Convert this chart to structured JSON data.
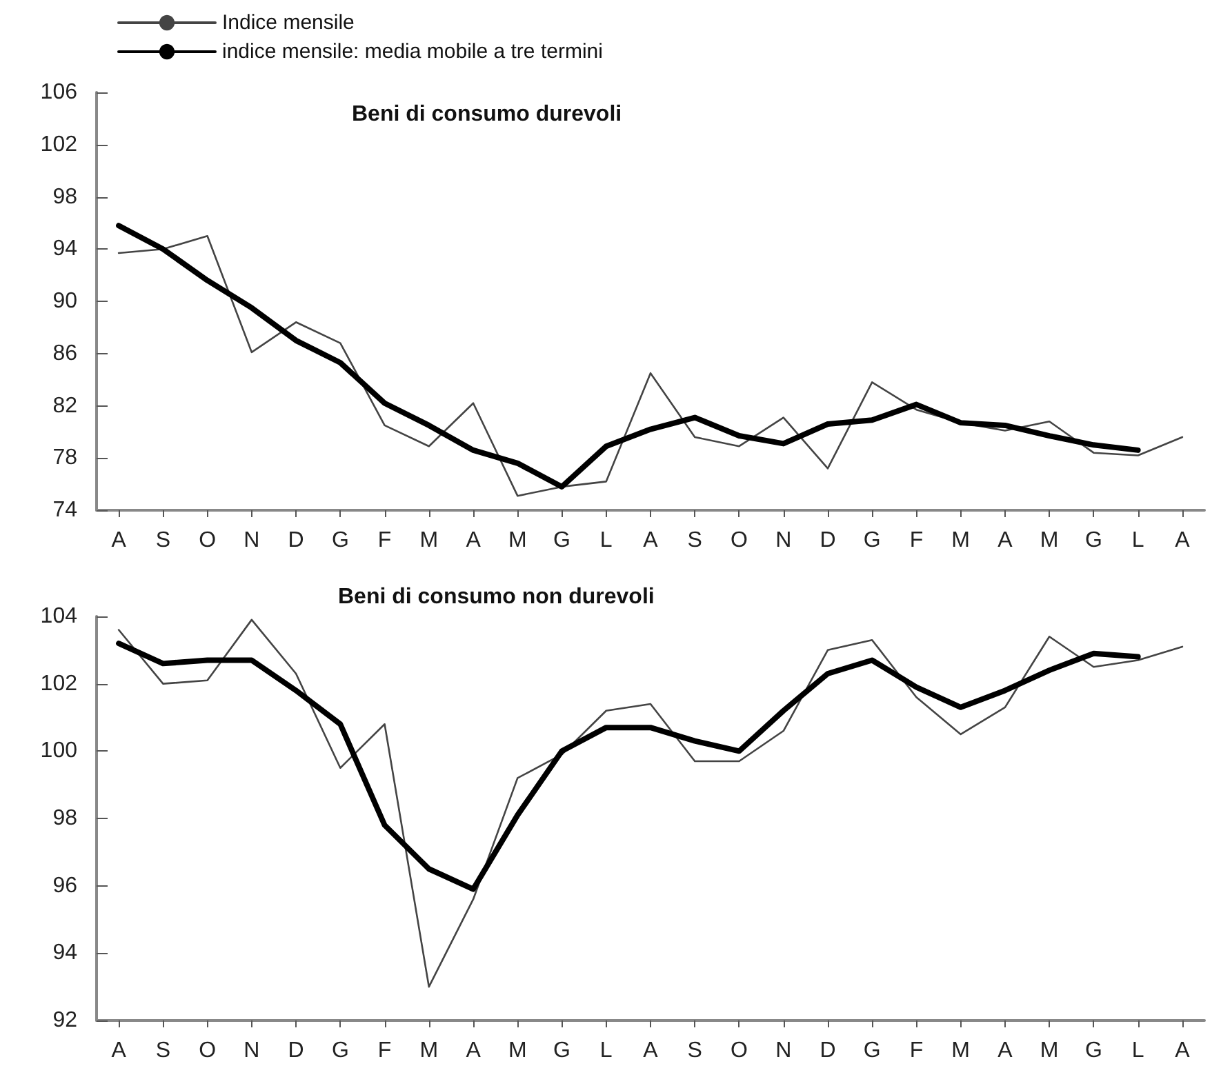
{
  "chart_data": [
    {
      "type": "line",
      "title": "Beni di consumo durevoli",
      "categories": [
        "A",
        "S",
        "O",
        "N",
        "D",
        "G",
        "F",
        "M",
        "A",
        "M",
        "G",
        "L",
        "A",
        "S",
        "O",
        "N",
        "D",
        "G",
        "F",
        "M",
        "A",
        "M",
        "G",
        "L",
        "A"
      ],
      "series": [
        {
          "name": "Indice mensile",
          "color": "#444444",
          "values": [
            93.7,
            94.0,
            95.0,
            86.1,
            88.4,
            86.8,
            80.5,
            78.9,
            82.2,
            75.1,
            75.8,
            76.2,
            84.5,
            79.6,
            78.9,
            81.1,
            77.2,
            83.8,
            81.7,
            80.7,
            80.1,
            80.8,
            78.4,
            78.2,
            79.6
          ]
        },
        {
          "name": "indice mensile: media mobile a tre termini",
          "color": "#000000",
          "values": [
            95.8,
            94.0,
            91.6,
            89.5,
            87.0,
            85.3,
            82.2,
            80.5,
            78.6,
            77.6,
            75.8,
            78.9,
            80.2,
            81.1,
            79.7,
            79.1,
            80.6,
            80.9,
            82.1,
            80.7,
            80.5,
            79.7,
            79.0,
            78.6,
            null
          ]
        }
      ],
      "ylim": [
        74,
        106
      ],
      "yticks": [
        74,
        78,
        82,
        86,
        90,
        94,
        98,
        102,
        106
      ],
      "grid": false,
      "legend": "top left",
      "marker": "none",
      "line_style": "solid"
    },
    {
      "type": "line",
      "title": "Beni di consumo non durevoli",
      "categories": [
        "A",
        "S",
        "O",
        "N",
        "D",
        "G",
        "F",
        "M",
        "A",
        "M",
        "G",
        "L",
        "A",
        "S",
        "O",
        "N",
        "D",
        "G",
        "F",
        "M",
        "A",
        "M",
        "G",
        "L",
        "A"
      ],
      "series": [
        {
          "color": "#444444",
          "values": [
            103.6,
            102.0,
            102.1,
            103.9,
            102.3,
            99.5,
            100.8,
            93.0,
            95.6,
            99.2,
            99.9,
            101.2,
            101.4,
            99.7,
            99.7,
            100.6,
            103.0,
            103.3,
            101.6,
            100.5,
            101.3,
            103.4,
            102.5,
            102.7,
            103.1
          ]
        },
        {
          "color": "#000000",
          "values": [
            103.2,
            102.6,
            102.7,
            102.7,
            101.8,
            100.8,
            97.8,
            96.5,
            95.9,
            98.1,
            100.0,
            100.7,
            100.7,
            100.3,
            100.0,
            101.2,
            102.3,
            102.7,
            101.9,
            101.3,
            101.8,
            102.4,
            102.9,
            102.8,
            null
          ]
        }
      ],
      "ylim": [
        92,
        104
      ],
      "yticks": [
        92,
        94,
        96,
        98,
        100,
        102,
        104
      ],
      "grid": false,
      "legend": false,
      "marker": "none",
      "line_style": "solid"
    }
  ]
}
